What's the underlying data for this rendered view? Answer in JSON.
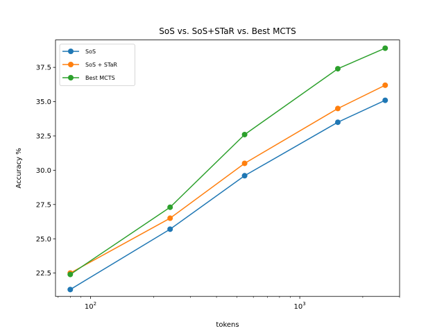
{
  "chart_data": {
    "type": "line",
    "title": "SoS vs. SoS+STaR vs. Best MCTS",
    "xlabel": "tokens",
    "ylabel": "Accuracy %",
    "xscale": "log",
    "xlim": [
      68,
      3000
    ],
    "ylim": [
      20.8,
      39.5
    ],
    "x": [
      80,
      240,
      545,
      1520,
      2560
    ],
    "series": [
      {
        "name": "SoS",
        "color": "#1f77b4",
        "values": [
          21.3,
          25.7,
          29.6,
          33.5,
          35.1
        ]
      },
      {
        "name": "SoS + STaR",
        "color": "#ff7f0e",
        "values": [
          22.5,
          26.5,
          30.5,
          34.5,
          36.2
        ]
      },
      {
        "name": "Best MCTS",
        "color": "#2ca02c",
        "values": [
          22.4,
          27.3,
          32.6,
          37.4,
          38.9
        ]
      }
    ],
    "yticks": [
      22.5,
      25.0,
      27.5,
      30.0,
      32.5,
      35.0,
      37.5
    ],
    "ytick_labels": [
      "22.5",
      "25.0",
      "27.5",
      "30.0",
      "32.5",
      "35.0",
      "37.5"
    ],
    "xticks_major": [
      100,
      1000
    ],
    "xtick_labels": [
      {
        "base": "10",
        "exp": "2"
      },
      {
        "base": "10",
        "exp": "3"
      }
    ],
    "grid": false,
    "legend_position": "top-left"
  }
}
